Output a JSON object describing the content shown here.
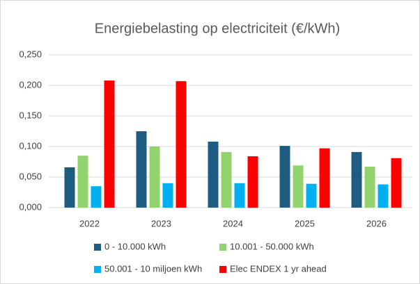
{
  "chart_data": {
    "type": "bar",
    "title": "Energiebelasting op electriciteit (€/kWh)",
    "categories": [
      "2022",
      "2023",
      "2024",
      "2025",
      "2026"
    ],
    "series": [
      {
        "name": "0 - 10.000 kWh",
        "color": "#1f5c82",
        "values": [
          0.066,
          0.125,
          0.108,
          0.101,
          0.091
        ]
      },
      {
        "name": "10.001 - 50.000 kWh",
        "color": "#92d36e",
        "values": [
          0.085,
          0.1,
          0.091,
          0.069,
          0.067
        ]
      },
      {
        "name": "50.001 - 10 miljoen kWh",
        "color": "#00b0f0",
        "values": [
          0.035,
          0.04,
          0.04,
          0.039,
          0.038
        ]
      },
      {
        "name": "Elec ENDEX 1 yr ahead",
        "color": "#ff0000",
        "values": [
          0.208,
          0.207,
          0.084,
          0.097,
          0.081
        ]
      }
    ],
    "ylim": [
      0,
      0.25
    ],
    "yticks": [
      {
        "value": 0,
        "label": "0,000"
      },
      {
        "value": 0.05,
        "label": "0,050"
      },
      {
        "value": 0.1,
        "label": "0,100"
      },
      {
        "value": 0.15,
        "label": "0,150"
      },
      {
        "value": 0.2,
        "label": "0,200"
      },
      {
        "value": 0.25,
        "label": "0,250"
      }
    ],
    "grid": true,
    "legend": "bottom"
  }
}
